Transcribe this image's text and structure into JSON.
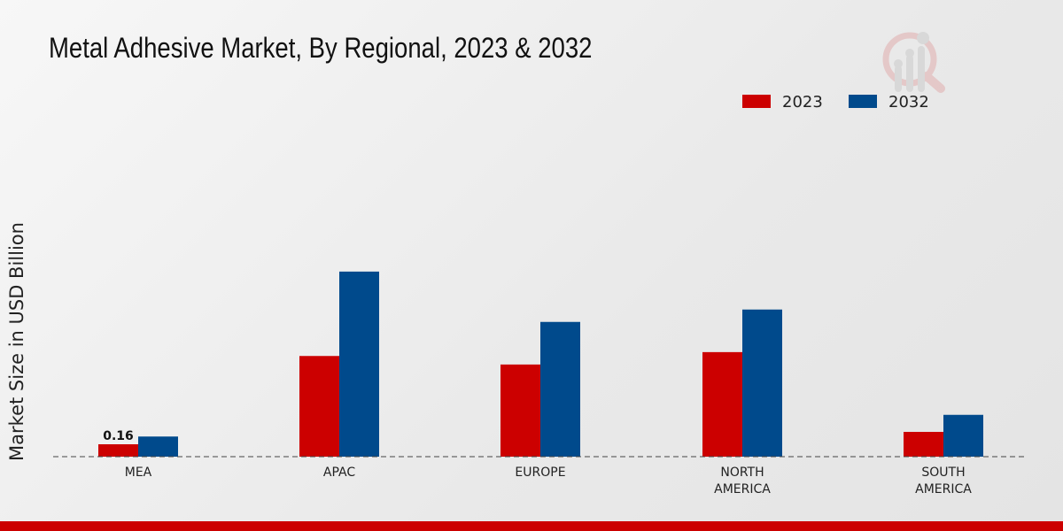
{
  "title": "Metal Adhesive Market, By Regional, 2023 & 2032",
  "chart_data": {
    "type": "bar",
    "title": "Metal Adhesive Market, By Regional, 2023 & 2032",
    "xlabel": "",
    "ylabel": "Market Size in USD Billion",
    "categories": [
      [
        "MEA"
      ],
      [
        "APAC"
      ],
      [
        "EUROPE"
      ],
      [
        "NORTH",
        "AMERICA"
      ],
      [
        "SOUTH",
        "AMERICA"
      ]
    ],
    "series": [
      {
        "name": "2023",
        "color": "#cc0000",
        "values": [
          0.16,
          1.3,
          1.19,
          1.35,
          0.32
        ]
      },
      {
        "name": "2032",
        "color": "#004a8c",
        "values": [
          0.26,
          2.39,
          1.74,
          1.9,
          0.54
        ]
      }
    ],
    "data_labels": [
      {
        "series": 0,
        "index": 0,
        "text": "0.16"
      }
    ],
    "ylim": [
      0,
      2.5
    ],
    "grid": false,
    "legend": "top-right"
  }
}
